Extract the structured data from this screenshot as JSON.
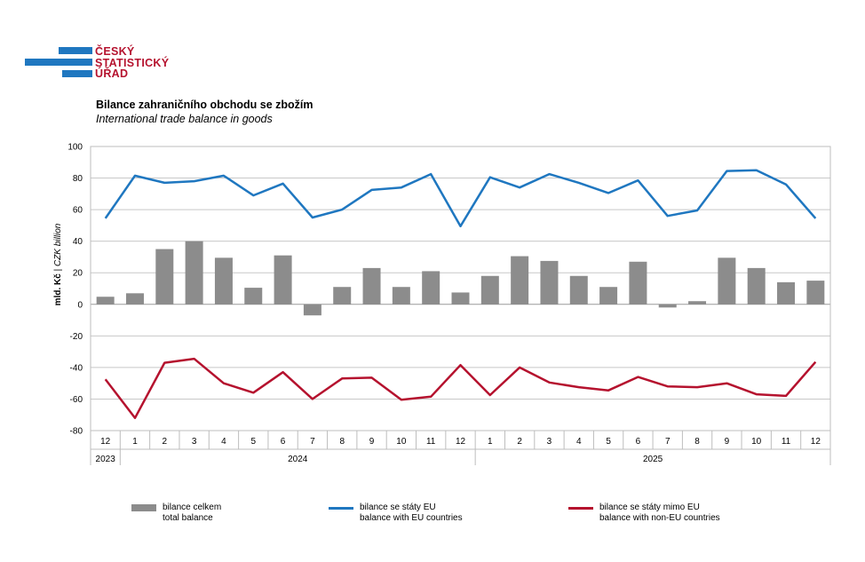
{
  "logo": {
    "lines": [
      "ČESKÝ",
      "STATISTICKÝ",
      "ÚŘAD"
    ]
  },
  "header": {
    "title": "Bilance zahraničního obchodu se zbožím",
    "subtitle": "International trade balance in goods"
  },
  "colors": {
    "bars": "#8c8c8c",
    "eu": "#1f77c0",
    "non_eu": "#b5122e",
    "brand": "#1f77c0",
    "brand_text": "#b5122e"
  },
  "chart_data": {
    "type": "bar",
    "ylabel_cz": "mld. Kč",
    "ylabel_en": "CZK billion",
    "ylim": [
      -80,
      100
    ],
    "yticks": [
      100,
      80,
      60,
      40,
      20,
      0,
      -20,
      -40,
      -60,
      -80
    ],
    "categories": [
      "12",
      "1",
      "2",
      "3",
      "4",
      "5",
      "6",
      "7",
      "8",
      "9",
      "10",
      "11",
      "12",
      "1",
      "2",
      "3",
      "4",
      "5",
      "6",
      "7",
      "8",
      "9",
      "10",
      "11",
      "12"
    ],
    "year_labels": [
      "2023",
      "2024",
      "2025"
    ],
    "grid": true,
    "legend_position": "bottom",
    "series": [
      {
        "name": "bilance celkem",
        "name_en": "total balance",
        "type": "bar",
        "values": [
          4.8,
          7.0,
          35.0,
          40.0,
          29.5,
          10.5,
          31.0,
          -7.0,
          11.0,
          23.0,
          11.0,
          21.0,
          7.5,
          18.0,
          30.5,
          27.5,
          18.0,
          11.0,
          27.0,
          -2.0,
          2.0,
          29.5,
          23.0,
          14.0,
          15.0
        ]
      },
      {
        "name": "bilance se státy EU",
        "name_en": "balance with EU countries",
        "type": "line",
        "values": [
          54.5,
          81.5,
          77.0,
          78.0,
          81.5,
          69.0,
          76.5,
          55.0,
          60.0,
          72.5,
          74.0,
          82.5,
          49.5,
          80.5,
          74.0,
          82.5,
          77.0,
          70.5,
          78.5,
          56.0,
          59.5,
          84.5,
          85.0,
          76.0,
          54.5
        ]
      },
      {
        "name": "bilance se státy mimo EU",
        "name_en": "balance with non-EU countries",
        "type": "line",
        "values": [
          -47.5,
          -72.0,
          -37.0,
          -34.5,
          -50.0,
          -56.0,
          -43.0,
          -60.0,
          -47.0,
          -46.5,
          -60.5,
          -58.5,
          -38.5,
          -57.5,
          -40.0,
          -49.5,
          -52.5,
          -54.5,
          -46.0,
          -52.0,
          -52.5,
          -50.0,
          -57.0,
          -58.0,
          -36.5
        ]
      }
    ]
  }
}
